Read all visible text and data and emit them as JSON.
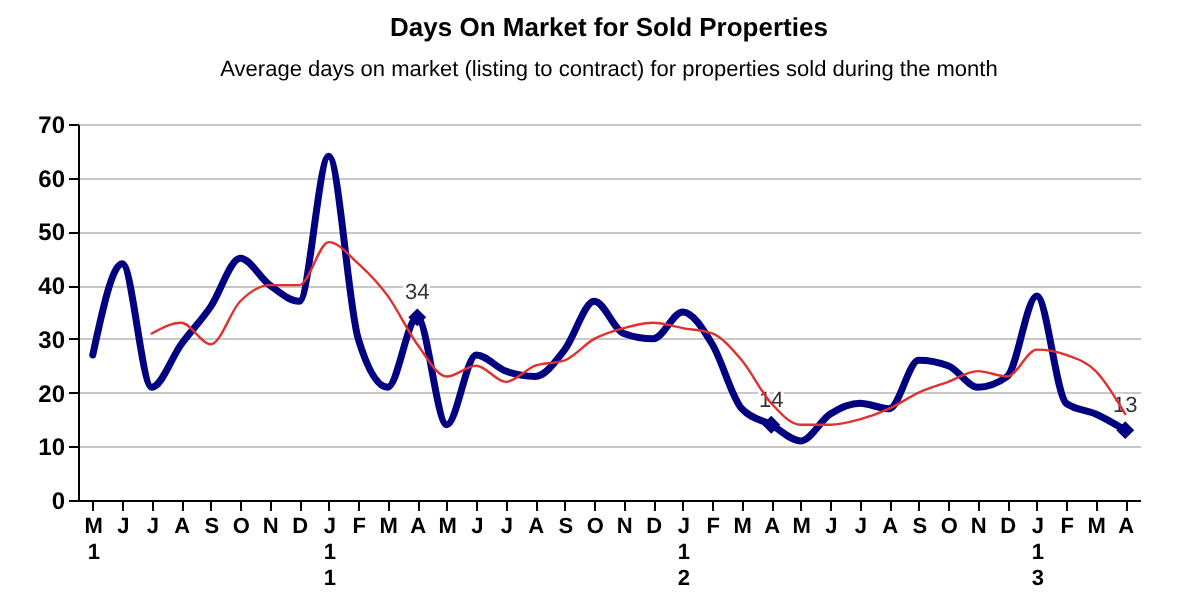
{
  "chart_data": {
    "type": "line",
    "title": "Days On Market for Sold Properties",
    "subtitle": "Average days on market (listing to contract) for properties sold during the month",
    "categories": [
      "M\n\n1",
      "J",
      "J",
      "A",
      "S",
      "O",
      "N",
      "D",
      "J\n1\n1",
      "F",
      "M",
      "A",
      "M",
      "J",
      "J",
      "A",
      "S",
      "O",
      "N",
      "D",
      "J\n1\n2",
      "F",
      "M",
      "A",
      "M",
      "J",
      "J",
      "A",
      "S",
      "O",
      "N",
      "D",
      "J\n1\n3",
      "F",
      "M",
      "A"
    ],
    "series": [
      {
        "color": "#000080",
        "values": [
          27,
          44,
          21,
          29,
          36,
          45,
          40,
          37,
          64,
          30,
          21,
          34,
          14,
          27,
          24,
          23,
          28,
          37,
          31,
          30,
          35,
          29,
          17,
          14,
          11,
          16,
          18,
          17,
          26,
          25,
          21,
          23,
          38,
          18,
          16,
          13
        ],
        "value_labels": [
          null,
          null,
          null,
          null,
          null,
          null,
          null,
          null,
          null,
          null,
          null,
          "34",
          null,
          null,
          null,
          null,
          null,
          null,
          null,
          null,
          null,
          null,
          null,
          "14",
          null,
          null,
          null,
          null,
          null,
          null,
          null,
          null,
          null,
          null,
          null,
          "13"
        ]
      },
      {
        "color": "#e03030",
        "values": [
          null,
          null,
          31,
          33,
          29,
          37,
          40,
          40,
          48,
          44,
          38,
          29,
          23,
          25,
          22,
          25,
          26,
          30,
          32,
          33,
          32,
          31,
          26,
          18,
          14,
          14,
          15,
          17,
          20,
          22,
          24,
          23,
          28,
          27,
          24,
          16
        ]
      }
    ],
    "ylim": [
      0,
      70
    ],
    "yticks": [
      0,
      10,
      20,
      30,
      40,
      50,
      60,
      70
    ],
    "grid": "y"
  }
}
